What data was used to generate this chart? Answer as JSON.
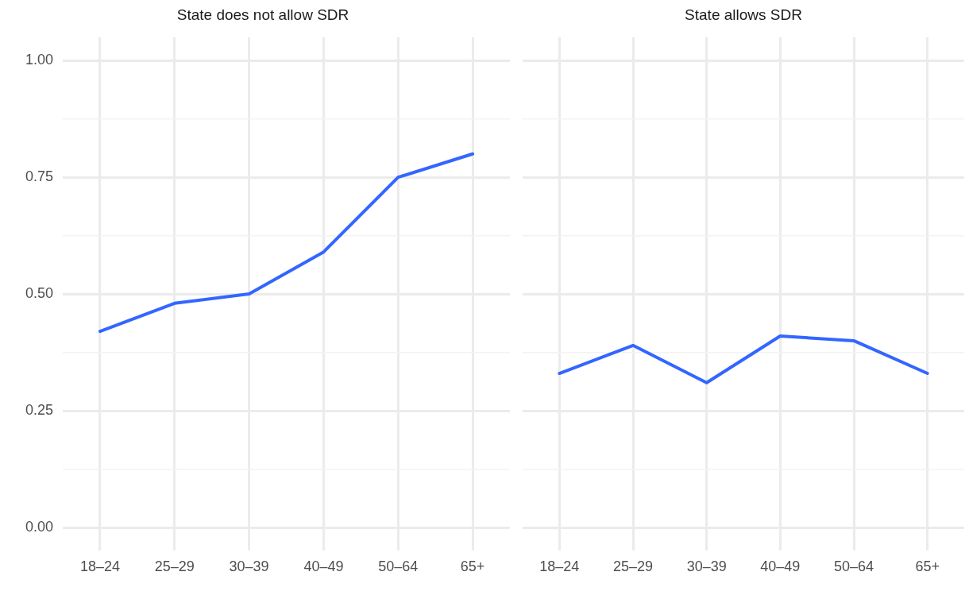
{
  "chart_data": [
    {
      "type": "line",
      "title": "State does not allow SDR",
      "categories": [
        "18–24",
        "25–29",
        "30–39",
        "40–49",
        "50–64",
        "65+"
      ],
      "series": [
        {
          "color": "#3366ff",
          "values": [
            0.42,
            0.48,
            0.5,
            0.59,
            0.75,
            0.8
          ]
        }
      ],
      "ylim": [
        -0.05,
        1.05
      ],
      "yticks": [
        {
          "value": 0,
          "label": "0.00"
        },
        {
          "value": 0.125,
          "label": null
        },
        {
          "value": 0.25,
          "label": "0.25"
        },
        {
          "value": 0.375,
          "label": null
        },
        {
          "value": 0.5,
          "label": "0.50"
        },
        {
          "value": 0.625,
          "label": null
        },
        {
          "value": 0.75,
          "label": "0.75"
        },
        {
          "value": 0.875,
          "label": null
        },
        {
          "value": 1,
          "label": "1.00"
        }
      ],
      "grid": true,
      "legend": false,
      "marker": "none",
      "line_style": "solid"
    },
    {
      "type": "line",
      "title": "State allows SDR",
      "categories": [
        "18–24",
        "25–29",
        "30–39",
        "40–49",
        "50–64",
        "65+"
      ],
      "series": [
        {
          "color": "#3366ff",
          "values": [
            0.33,
            0.39,
            0.31,
            0.41,
            0.4,
            0.33
          ]
        }
      ],
      "ylim": [
        -0.05,
        1.05
      ],
      "yticks": [
        0,
        {
          "value": 0.125,
          "label": null
        },
        0.25,
        {
          "value": 0.375,
          "label": null
        },
        0.5,
        {
          "value": 0.625,
          "label": null
        },
        0.75,
        {
          "value": 0.875,
          "label": null
        },
        1
      ],
      "grid": true,
      "legend": false,
      "marker": "none",
      "line_style": "solid",
      "tick_labels": "x"
    }
  ]
}
